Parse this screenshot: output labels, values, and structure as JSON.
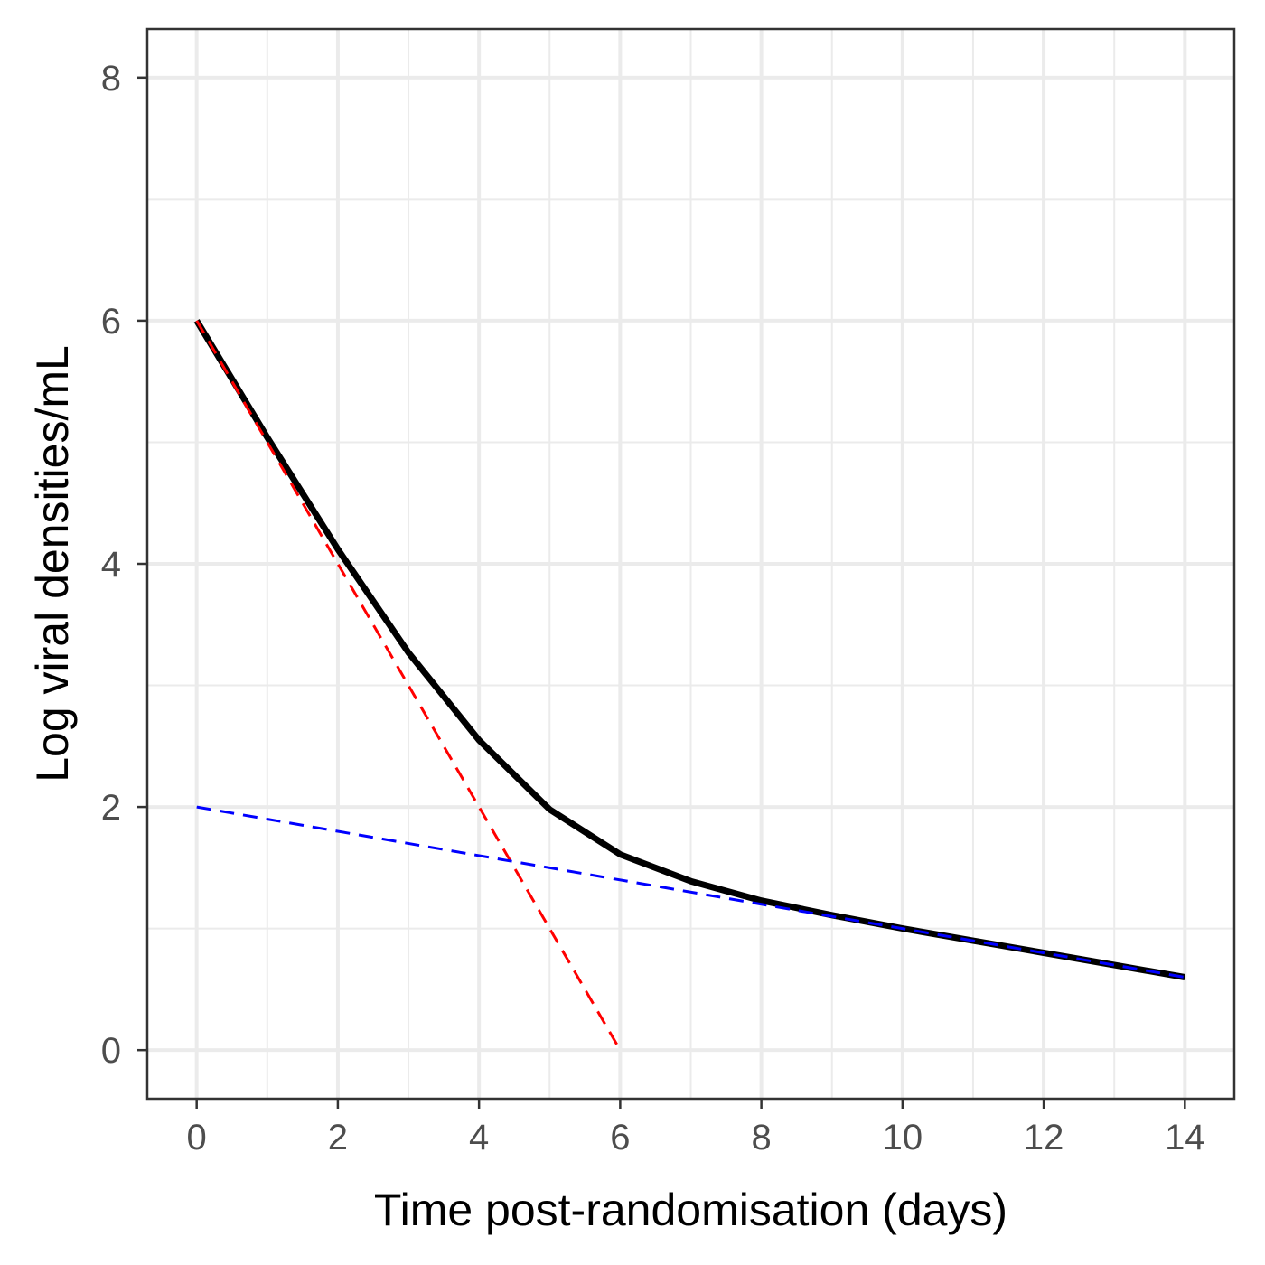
{
  "chart_data": {
    "type": "line",
    "xlabel": "Time post-randomisation (days)",
    "ylabel": "Log viral densities/mL",
    "xlim": [
      -0.7,
      14.7
    ],
    "ylim": [
      -0.4,
      8.4
    ],
    "xticks": [
      0,
      2,
      4,
      6,
      8,
      10,
      12,
      14
    ],
    "yticks": [
      0,
      2,
      4,
      6,
      8
    ],
    "grid": true,
    "legend": "none",
    "series": [
      {
        "style": "solid",
        "color": "#000000",
        "x": [
          0,
          1,
          2,
          3,
          4,
          5,
          6,
          7,
          8,
          9,
          10,
          11,
          12,
          13,
          14
        ],
        "y": [
          6.0,
          5.04,
          4.12,
          3.27,
          2.55,
          1.98,
          1.61,
          1.39,
          1.23,
          1.11,
          1.0,
          0.9,
          0.8,
          0.7,
          0.6
        ]
      },
      {
        "style": "dashed",
        "color": "#ff0000",
        "x": [
          0,
          6
        ],
        "y": [
          6.0,
          0.0
        ]
      },
      {
        "style": "dashed",
        "color": "#0000ff",
        "x": [
          0,
          14
        ],
        "y": [
          2.0,
          0.6
        ]
      }
    ]
  }
}
